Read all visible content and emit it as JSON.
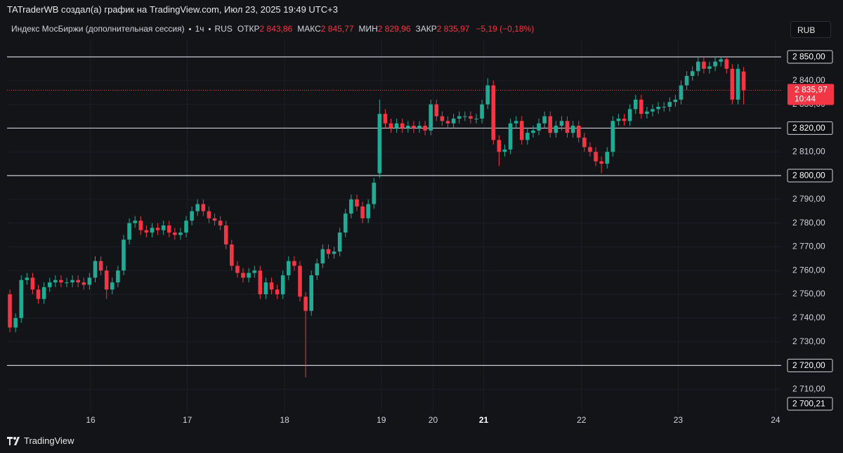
{
  "header": {
    "caption": "TATraderWB создал(а) график на TradingView.com, Июл 23, 2025 19:49 UTC+3"
  },
  "chart_data": {
    "type": "candlestick",
    "legend": {
      "symbol": "Индекс МосБиржи (дополнительная сессия)",
      "interval": "1ч",
      "exchange": "RUS",
      "fields": [
        {
          "label": "ОТКР",
          "value": "2 843,86"
        },
        {
          "label": "МАКС",
          "value": "2 845,77"
        },
        {
          "label": "МИН",
          "value": "2 829,96"
        },
        {
          "label": "ЗАКР",
          "value": "2 835,97"
        }
      ],
      "change": "−5,19 (−0,18%)"
    },
    "currency": "RUB",
    "up_color": "#22ab94",
    "down_color": "#f23645",
    "open": [
      2750,
      2736,
      2740,
      2756,
      2757,
      2752,
      2748,
      2753,
      2755,
      2756,
      2755,
      2755,
      2756,
      2755,
      2754,
      2757,
      2764,
      2760,
      2752,
      2755,
      2760,
      2773,
      2780,
      2781,
      2777,
      2776,
      2778,
      2777,
      2779,
      2776,
      2775,
      2776,
      2781,
      2785,
      2788,
      2785,
      2782,
      2781,
      2779,
      2771,
      2762,
      2759,
      2757,
      2759,
      2760,
      2750,
      2755,
      2752,
      2750,
      2758,
      2764,
      2762,
      2749,
      2743,
      2758,
      2763,
      2769,
      2767,
      2768,
      2776,
      2784,
      2790,
      2787,
      2782,
      2788,
      2801,
      2826,
      2822,
      2820,
      2822,
      2820,
      2821,
      2820,
      2821,
      2819,
      2830,
      2825,
      2823,
      2822,
      2824,
      2825,
      2825,
      2824,
      2824,
      2830,
      2838,
      2815,
      2810,
      2811,
      2822,
      2823,
      2815,
      2818,
      2819,
      2822,
      2825,
      2818,
      2821,
      2823,
      2818,
      2821,
      2816,
      2812,
      2810,
      2806,
      2805,
      2810,
      2823,
      2824,
      2823,
      2828,
      2832,
      2826,
      2827,
      2828,
      2829,
      2829,
      2831,
      2832,
      2838,
      2842,
      2844,
      2848,
      2845,
      2846,
      2848,
      2849,
      2845,
      2832,
      2843.86
    ],
    "high": [
      2752,
      2742,
      2758,
      2759,
      2759,
      2754,
      2755,
      2757,
      2758,
      2758,
      2757,
      2758,
      2758,
      2757,
      2759,
      2766,
      2766,
      2762,
      2757,
      2762,
      2775,
      2782,
      2783,
      2783,
      2779,
      2780,
      2780,
      2781,
      2781,
      2778,
      2778,
      2783,
      2787,
      2790,
      2790,
      2787,
      2784,
      2783,
      2781,
      2773,
      2764,
      2761,
      2761,
      2762,
      2762,
      2757,
      2757,
      2754,
      2760,
      2766,
      2766,
      2764,
      2751,
      2760,
      2765,
      2771,
      2771,
      2770,
      2778,
      2786,
      2792,
      2792,
      2789,
      2790,
      2799,
      2832,
      2828,
      2824,
      2824,
      2824,
      2823,
      2823,
      2823,
      2823,
      2832,
      2832,
      2827,
      2825,
      2826,
      2827,
      2827,
      2827,
      2826,
      2832,
      2841,
      2840,
      2817,
      2813,
      2824,
      2825,
      2825,
      2820,
      2821,
      2824,
      2827,
      2827,
      2823,
      2825,
      2825,
      2823,
      2823,
      2818,
      2814,
      2812,
      2808,
      2812,
      2825,
      2826,
      2826,
      2830,
      2834,
      2834,
      2829,
      2830,
      2831,
      2831,
      2833,
      2834,
      2840,
      2844,
      2846,
      2850,
      2850,
      2848,
      2850,
      2850,
      2850,
      2847,
      2847,
      2845.77
    ],
    "low": [
      2734,
      2734,
      2738,
      2754,
      2750,
      2746,
      2746,
      2751,
      2753,
      2753,
      2753,
      2753,
      2753,
      2752,
      2752,
      2755,
      2758,
      2748,
      2750,
      2753,
      2758,
      2771,
      2778,
      2775,
      2774,
      2774,
      2775,
      2775,
      2774,
      2773,
      2773,
      2774,
      2779,
      2783,
      2783,
      2780,
      2779,
      2777,
      2769,
      2760,
      2757,
      2755,
      2755,
      2757,
      2748,
      2748,
      2750,
      2748,
      2748,
      2756,
      2760,
      2747,
      2715,
      2741,
      2756,
      2761,
      2765,
      2765,
      2766,
      2774,
      2782,
      2785,
      2780,
      2780,
      2786,
      2799,
      2820,
      2818,
      2818,
      2818,
      2818,
      2818,
      2818,
      2817,
      2817,
      2823,
      2821,
      2820,
      2820,
      2822,
      2823,
      2822,
      2822,
      2822,
      2828,
      2813,
      2804,
      2808,
      2809,
      2820,
      2813,
      2813,
      2816,
      2817,
      2820,
      2816,
      2816,
      2819,
      2816,
      2816,
      2814,
      2810,
      2808,
      2804,
      2801,
      2803,
      2808,
      2821,
      2821,
      2821,
      2826,
      2824,
      2824,
      2825,
      2826,
      2827,
      2827,
      2829,
      2830,
      2836,
      2840,
      2842,
      2843,
      2843,
      2844,
      2846,
      2843,
      2830,
      2830,
      2829.96
    ],
    "close": [
      2736,
      2740,
      2756,
      2757,
      2752,
      2748,
      2753,
      2755,
      2756,
      2755,
      2755,
      2756,
      2755,
      2754,
      2757,
      2764,
      2760,
      2752,
      2755,
      2760,
      2773,
      2780,
      2781,
      2777,
      2776,
      2778,
      2777,
      2779,
      2776,
      2775,
      2776,
      2781,
      2785,
      2788,
      2785,
      2782,
      2781,
      2779,
      2771,
      2762,
      2759,
      2757,
      2759,
      2760,
      2750,
      2755,
      2752,
      2750,
      2758,
      2764,
      2762,
      2749,
      2743,
      2758,
      2763,
      2769,
      2767,
      2768,
      2776,
      2784,
      2790,
      2787,
      2782,
      2788,
      2797,
      2826,
      2822,
      2820,
      2822,
      2820,
      2821,
      2820,
      2821,
      2819,
      2830,
      2825,
      2823,
      2822,
      2824,
      2825,
      2825,
      2824,
      2824,
      2830,
      2838,
      2815,
      2810,
      2811,
      2822,
      2823,
      2815,
      2818,
      2819,
      2822,
      2825,
      2818,
      2821,
      2823,
      2818,
      2821,
      2816,
      2812,
      2810,
      2806,
      2805,
      2810,
      2823,
      2824,
      2823,
      2828,
      2832,
      2826,
      2827,
      2828,
      2829,
      2829,
      2831,
      2832,
      2838,
      2842,
      2844,
      2848,
      2845,
      2846,
      2848,
      2849,
      2845,
      2832,
      2845,
      2835.97
    ],
    "xlim": [
      -0.5,
      135.6
    ],
    "xticks": [
      {
        "value": 14.2,
        "label": "16"
      },
      {
        "value": 31.2,
        "label": "17"
      },
      {
        "value": 48.3,
        "label": "18"
      },
      {
        "value": 65.3,
        "label": "19"
      },
      {
        "value": 74.4,
        "label": "20"
      },
      {
        "value": 83.3,
        "label": "21",
        "bold": true
      },
      {
        "value": 100.5,
        "label": "22"
      },
      {
        "value": 117.5,
        "label": "23"
      },
      {
        "value": 134.6,
        "label": "24"
      }
    ],
    "ylim": [
      2700,
      2857.7
    ],
    "yticks": [
      {
        "value": 2840,
        "label": "2 840,00"
      },
      {
        "value": 2830,
        "label": "2 830,00"
      },
      {
        "value": 2810,
        "label": "2 810,00"
      },
      {
        "value": 2790,
        "label": "2 790,00"
      },
      {
        "value": 2780,
        "label": "2 780,00"
      },
      {
        "value": 2770,
        "label": "2 770,00"
      },
      {
        "value": 2760,
        "label": "2 760,00"
      },
      {
        "value": 2750,
        "label": "2 750,00"
      },
      {
        "value": 2740,
        "label": "2 740,00"
      },
      {
        "value": 2730,
        "label": "2 730,00"
      },
      {
        "value": 2710,
        "label": "2 710,00"
      }
    ],
    "hlines": [
      {
        "value": 2850,
        "label": "2 850,00"
      },
      {
        "value": 2820,
        "label": "2 820,00"
      },
      {
        "value": 2800,
        "label": "2 800,00"
      },
      {
        "value": 2720,
        "label": "2 720,00"
      }
    ],
    "last_price": {
      "value": 2835.97,
      "label": "2 835,97",
      "countdown": "10:44"
    },
    "crosshair_price": {
      "value": 2700.21,
      "label": "2 700,21"
    },
    "grid": true
  },
  "footer": {
    "brand": "TradingView"
  }
}
